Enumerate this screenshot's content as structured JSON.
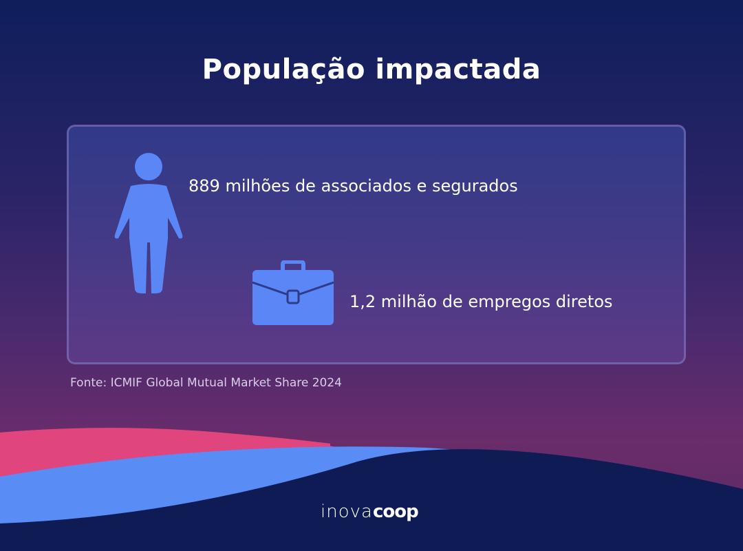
{
  "title": "População impactada",
  "stats": [
    {
      "icon": "person-icon",
      "text": "889 milhões de associados e segurados"
    },
    {
      "icon": "briefcase-icon",
      "text": "1,2 milhão de empregos diretos"
    }
  ],
  "source": "Fonte: ICMIF Global Mutual Market Share 2024",
  "logo": {
    "part1": "inova",
    "part2": "coop"
  },
  "colors": {
    "icon": "#5b86f5",
    "pink_wave": "#e0457d",
    "blue_wave": "#5a8cf5",
    "navy_wave": "#0e1b55"
  }
}
